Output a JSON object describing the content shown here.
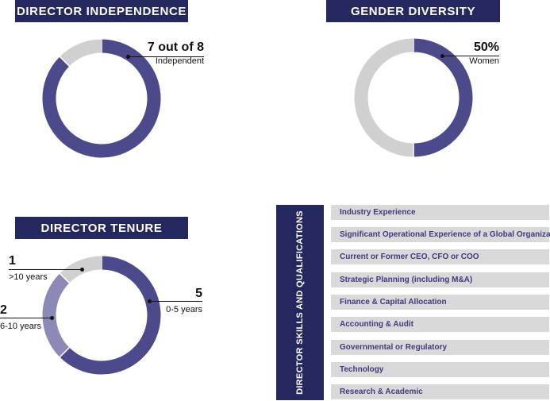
{
  "colors": {
    "navy": "#25285f",
    "purple": "#4d4a8c",
    "lavender": "#8c89b6",
    "gray": "#d0d0d0"
  },
  "independence": {
    "title": "DIRECTOR INDEPENDENCE",
    "big": "7 out of 8",
    "small": "Independent"
  },
  "gender": {
    "title": "GENDER DIVERSITY",
    "big": "50%",
    "small": "Women"
  },
  "tenure": {
    "title": "DIRECTOR TENURE",
    "labels": [
      {
        "big": "1",
        "small": ">10 years"
      },
      {
        "big": "2",
        "small": "6-10 years"
      },
      {
        "big": "5",
        "small": "0-5 years"
      }
    ]
  },
  "skills": {
    "title": "DIRECTOR SKILLS AND QUALIFICATIONS",
    "items": [
      "Industry Experience",
      "Significant Operational Experience of a Global Organization",
      "Current or Former CEO, CFO or COO",
      "Strategic Planning (including M&A)",
      "Finance & Capital Allocation",
      "Accounting & Audit",
      "Governmental or Regulatory",
      "Technology",
      "Research & Academic"
    ]
  },
  "chart_data": [
    {
      "type": "pie",
      "title": "DIRECTOR INDEPENDENCE",
      "categories": [
        "Independent",
        ""
      ],
      "values": [
        7,
        1
      ]
    },
    {
      "type": "pie",
      "title": "GENDER DIVERSITY",
      "categories": [
        "Women",
        ""
      ],
      "values": [
        50,
        50
      ]
    },
    {
      "type": "pie",
      "title": "DIRECTOR TENURE",
      "categories": [
        "0-5 years",
        "6-10 years",
        ">10 years"
      ],
      "values": [
        5,
        2,
        1
      ]
    }
  ]
}
